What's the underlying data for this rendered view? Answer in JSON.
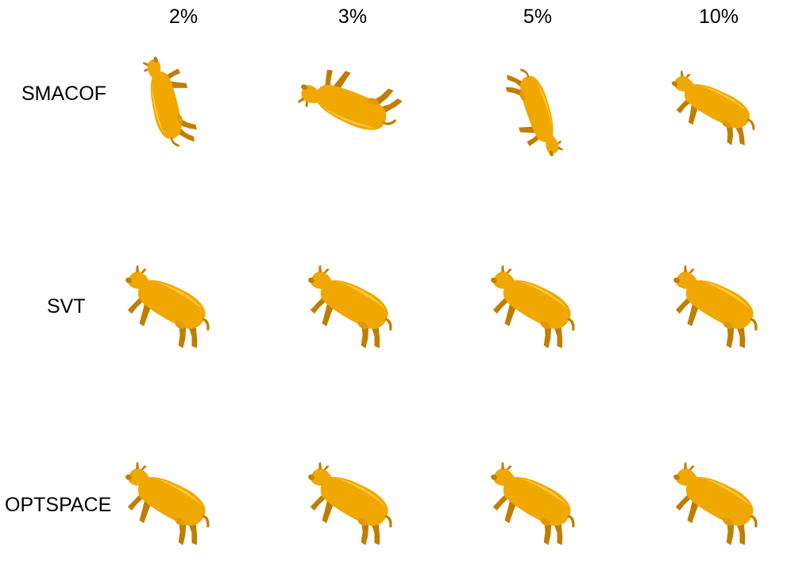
{
  "columns": [
    "2%",
    "3%",
    "5%",
    "10%"
  ],
  "rows": [
    "SMACOF",
    "SVT",
    "OPTSPACE"
  ],
  "colors": {
    "cow_fill": "#F0A800",
    "cow_shade": "#C07E00",
    "cow_highlight": "#FFC93A"
  }
}
